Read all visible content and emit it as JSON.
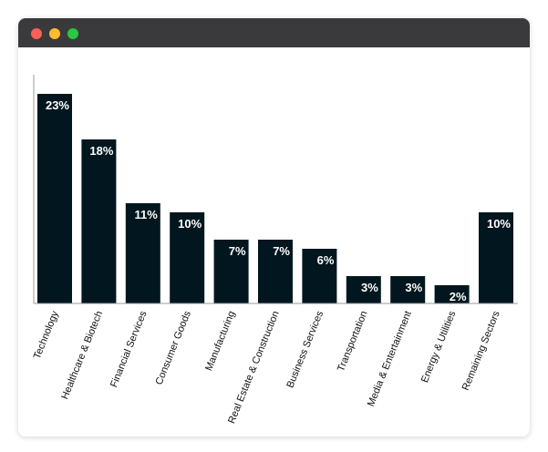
{
  "window": {
    "controls": [
      {
        "name": "close-dot",
        "color": "#ff5f57"
      },
      {
        "name": "minimize-dot",
        "color": "#febc2e"
      },
      {
        "name": "maximize-dot",
        "color": "#28c840"
      }
    ]
  },
  "colors": {
    "bar": "#01161e",
    "label_text": "#ffffff",
    "axis": "#9a9a9a",
    "titlebar": "#3a3a3c"
  },
  "chart_data": {
    "type": "bar",
    "title": "",
    "xlabel": "",
    "ylabel": "",
    "ylim": [
      0,
      25
    ],
    "grid": false,
    "categories": [
      "Technology",
      "Healthcare & Biotech",
      "Financial Services",
      "Consumer Goods",
      "Manufacturing",
      "Real Estate & Construction",
      "Business Services",
      "Transportation",
      "Media & Entertainment",
      "Energy & Utilities",
      "Remaining Sectors"
    ],
    "values": [
      23,
      18,
      11,
      10,
      7,
      7,
      6,
      3,
      3,
      2,
      10
    ],
    "data_labels": [
      "23%",
      "18%",
      "11%",
      "10%",
      "7%",
      "7%",
      "6%",
      "3%",
      "3%",
      "2%",
      "10%"
    ]
  }
}
